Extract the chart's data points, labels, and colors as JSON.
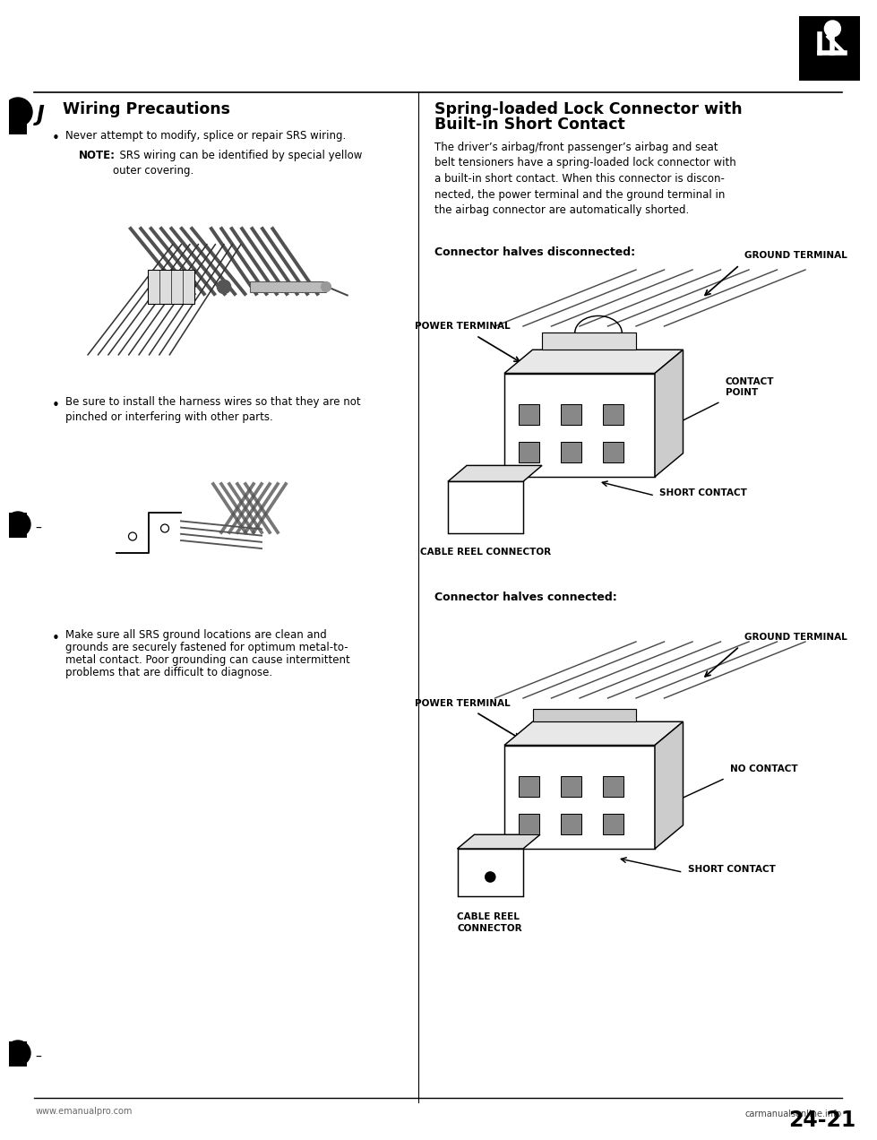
{
  "bg_color": "#ffffff",
  "left_title": "Wiring Precautions",
  "right_title_line1": "Spring-loaded Lock Connector with",
  "right_title_line2": "Built-in Short Contact",
  "bullet1": "Never attempt to modify, splice or repair SRS wiring.",
  "note_bold": "NOTE:",
  "note_rest": "  SRS wiring can be identified by special yellow\nouter covering.",
  "bullet2": "Be sure to install the harness wires so that they are not\npinched or interfering with other parts.",
  "bullet3_line1": "Make sure all SRS ground locations are clean and",
  "bullet3_line2": "grounds are securely fastened for optimum metal-to-",
  "bullet3_line3": "metal contact. Poor grounding can cause intermittent",
  "bullet3_line4": "problems that are difficult to diagnose.",
  "right_body": "The driver’s airbag/front passenger’s airbag and seat\nbelt tensioners have a spring-loaded lock connector with\na built-in short contact. When this connector is discon-\nnected, the power terminal and the ground terminal in\nthe airbag connector are automatically shorted.",
  "disconnected_label": "Connector halves disconnected:",
  "connected_label": "Connector halves connected:",
  "ground_terminal": "GROUND TERMINAL",
  "power_terminal": "POWER TERMINAL",
  "contact_point": "CONTACT\nPOINT",
  "short_contact": "SHORT CONTACT",
  "no_contact": "NO CONTACT",
  "cable_reel": "CABLE REEL CONNECTOR",
  "cable_reel2_line1": "CABLE REEL",
  "cable_reel2_line2": "CONNECTOR",
  "page_number": "24-21",
  "footer_left": "www.emanualpro.com",
  "footer_right": "carmanualsonline.info",
  "text_color": "#000000"
}
